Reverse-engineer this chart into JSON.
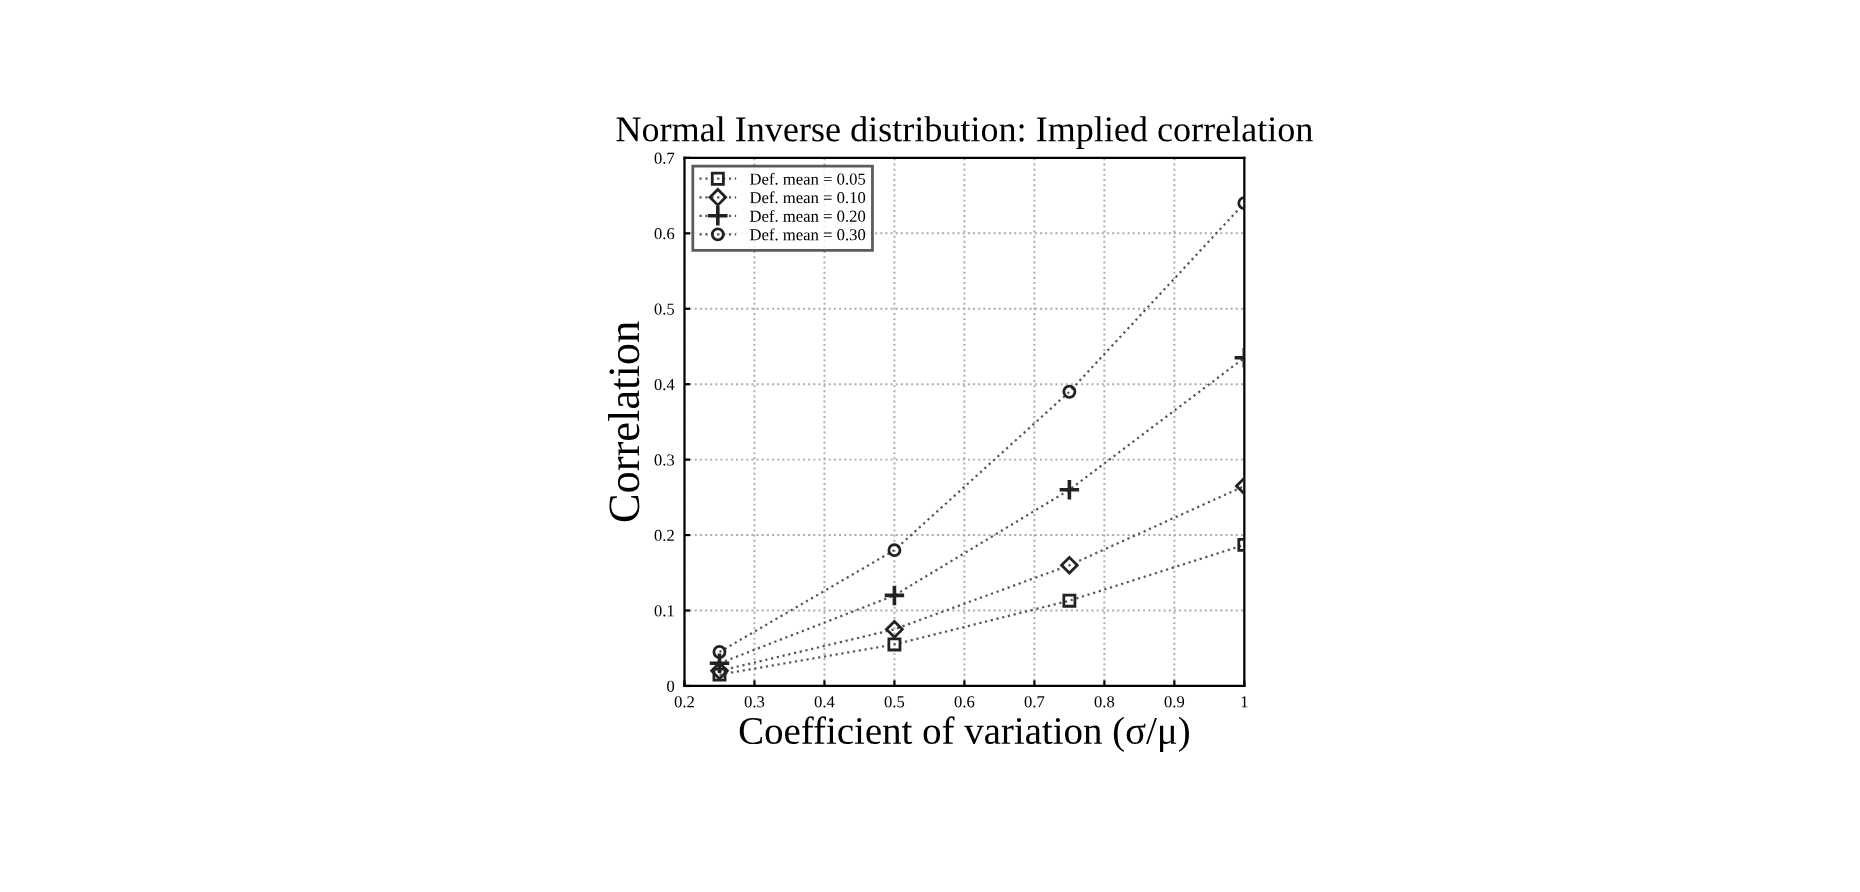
{
  "chart_data": {
    "type": "line",
    "title": "Normal Inverse distribution: Implied correlation",
    "xlabel": "Coefficient of variation (σ/μ)",
    "ylabel": "Correlation",
    "x": [
      0.25,
      0.5,
      0.75,
      1.0
    ],
    "series": [
      {
        "name": "Def. mean = 0.05",
        "color": "#555555",
        "marker": "square",
        "values": [
          0.015,
          0.055,
          0.113,
          0.187
        ]
      },
      {
        "name": "Def. mean = 0.10",
        "color": "#555555",
        "marker": "diamond",
        "values": [
          0.02,
          0.075,
          0.16,
          0.265
        ]
      },
      {
        "name": "Def. mean = 0.20",
        "color": "#555555",
        "marker": "cross",
        "values": [
          0.03,
          0.12,
          0.26,
          0.435
        ]
      },
      {
        "name": "Def. mean = 0.30",
        "color": "#555555",
        "marker": "circle",
        "values": [
          0.045,
          0.18,
          0.39,
          0.64
        ]
      }
    ],
    "xlim": [
      0.2,
      1.0
    ],
    "xticks": [
      0.2,
      0.3,
      0.4,
      0.5,
      0.6,
      0.7,
      0.8,
      0.9,
      1
    ],
    "ylim": [
      0,
      0.7
    ],
    "yticks": [
      0,
      0.1,
      0.2,
      0.3,
      0.4,
      0.5,
      0.6,
      0.7
    ],
    "grid": true,
    "legend": "top left",
    "line_style": "dotted"
  }
}
